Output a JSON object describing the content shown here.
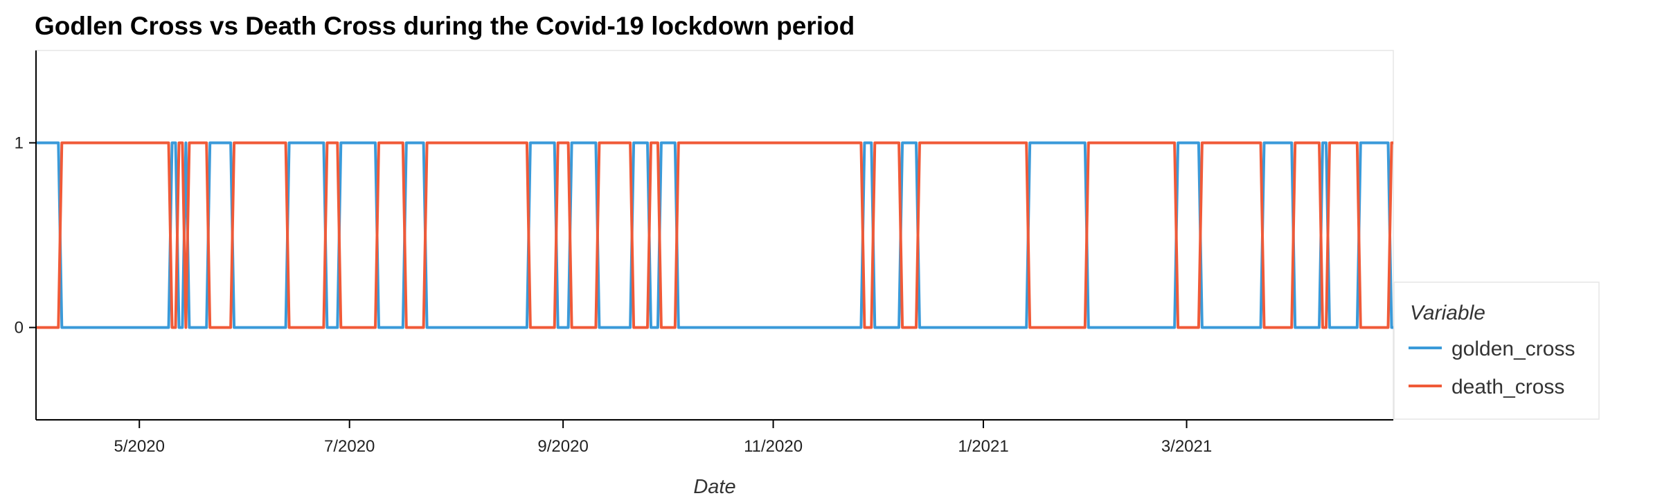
{
  "chart_data": {
    "type": "line",
    "title": "Godlen Cross vs Death Cross during the Covid-19 lockdown period",
    "xlabel": "Date",
    "ylabel": "",
    "x_type": "date",
    "xlim": [
      "2020-04-01",
      "2021-04-30"
    ],
    "ylim": [
      -0.5,
      1.5
    ],
    "x_ticks": [
      {
        "date": "2020-05-01",
        "label": "5/2020"
      },
      {
        "date": "2020-07-01",
        "label": "7/2020"
      },
      {
        "date": "2020-09-01",
        "label": "9/2020"
      },
      {
        "date": "2020-11-01",
        "label": "11/2020"
      },
      {
        "date": "2021-01-01",
        "label": "1/2021"
      },
      {
        "date": "2021-03-01",
        "label": "3/2021"
      }
    ],
    "y_ticks": [
      0,
      1
    ],
    "grid": false,
    "legend": {
      "title": "Variable",
      "placement": "right"
    },
    "series": [
      {
        "name": "golden_cross",
        "color": "#3a9ad9",
        "steps": [
          [
            "2020-04-01",
            1
          ],
          [
            "2020-04-08",
            0
          ],
          [
            "2020-05-10",
            1
          ],
          [
            "2020-05-12",
            0
          ],
          [
            "2020-05-14",
            1
          ],
          [
            "2020-05-15",
            0
          ],
          [
            "2020-05-21",
            1
          ],
          [
            "2020-05-28",
            0
          ],
          [
            "2020-06-13",
            1
          ],
          [
            "2020-06-24",
            0
          ],
          [
            "2020-06-28",
            1
          ],
          [
            "2020-07-09",
            0
          ],
          [
            "2020-07-17",
            1
          ],
          [
            "2020-07-23",
            0
          ],
          [
            "2020-08-22",
            1
          ],
          [
            "2020-08-30",
            0
          ],
          [
            "2020-09-03",
            1
          ],
          [
            "2020-09-11",
            0
          ],
          [
            "2020-09-21",
            1
          ],
          [
            "2020-09-26",
            0
          ],
          [
            "2020-09-29",
            1
          ],
          [
            "2020-10-04",
            0
          ],
          [
            "2020-11-27",
            1
          ],
          [
            "2020-11-30",
            0
          ],
          [
            "2020-12-08",
            1
          ],
          [
            "2020-12-13",
            0
          ],
          [
            "2021-01-14",
            1
          ],
          [
            "2021-01-31",
            0
          ],
          [
            "2021-02-26",
            1
          ],
          [
            "2021-03-05",
            0
          ],
          [
            "2021-03-23",
            1
          ],
          [
            "2021-04-01",
            0
          ],
          [
            "2021-04-09",
            1
          ],
          [
            "2021-04-11",
            0
          ],
          [
            "2021-04-20",
            1
          ],
          [
            "2021-04-29",
            0
          ]
        ]
      },
      {
        "name": "death_cross",
        "color": "#f05a38",
        "steps": [
          [
            "2020-04-01",
            0
          ],
          [
            "2020-04-08",
            1
          ],
          [
            "2020-05-10",
            0
          ],
          [
            "2020-05-12",
            1
          ],
          [
            "2020-05-14",
            0
          ],
          [
            "2020-05-15",
            1
          ],
          [
            "2020-05-21",
            0
          ],
          [
            "2020-05-28",
            1
          ],
          [
            "2020-06-13",
            0
          ],
          [
            "2020-06-24",
            1
          ],
          [
            "2020-06-28",
            0
          ],
          [
            "2020-07-09",
            1
          ],
          [
            "2020-07-17",
            0
          ],
          [
            "2020-07-23",
            1
          ],
          [
            "2020-08-22",
            0
          ],
          [
            "2020-08-30",
            1
          ],
          [
            "2020-09-03",
            0
          ],
          [
            "2020-09-11",
            1
          ],
          [
            "2020-09-21",
            0
          ],
          [
            "2020-09-26",
            1
          ],
          [
            "2020-09-29",
            0
          ],
          [
            "2020-10-04",
            1
          ],
          [
            "2020-11-27",
            0
          ],
          [
            "2020-11-30",
            1
          ],
          [
            "2020-12-08",
            0
          ],
          [
            "2020-12-13",
            1
          ],
          [
            "2021-01-14",
            0
          ],
          [
            "2021-01-31",
            1
          ],
          [
            "2021-02-26",
            0
          ],
          [
            "2021-03-05",
            1
          ],
          [
            "2021-03-23",
            0
          ],
          [
            "2021-04-01",
            1
          ],
          [
            "2021-04-09",
            0
          ],
          [
            "2021-04-11",
            1
          ],
          [
            "2021-04-20",
            0
          ],
          [
            "2021-04-29",
            1
          ]
        ]
      }
    ]
  }
}
